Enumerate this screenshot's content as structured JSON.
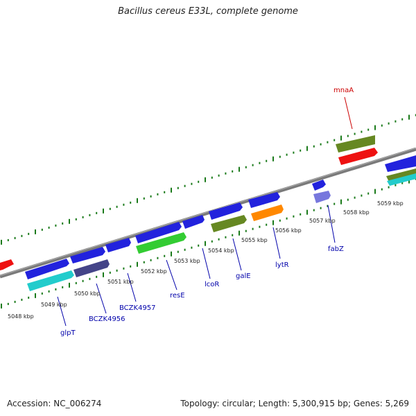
{
  "title": "Bacillus cereus E33L, complete genome",
  "footer": {
    "accession": "Accession: NC_006274",
    "stats": "Topology: circular; Length: 5,300,915 bp; Genes: 5,269"
  },
  "colors": {
    "backbone": "#888888",
    "ticks": "#1a7a1a",
    "gene_label": "#0000aa",
    "highlight_label": "#cc0000",
    "blue": "#2222dd",
    "cyan": "#22cccc",
    "navy": "#444488",
    "green": "#33cc33",
    "olive": "#668822",
    "orange": "#ff8800",
    "red": "#ee1111",
    "lavender": "#7777dd"
  },
  "scale_labels": [
    "5048 kbp",
    "5049 kbp",
    "5050 kbp",
    "5051 kbp",
    "5052 kbp",
    "5053 kbp",
    "5054 kbp",
    "5055 kbp",
    "5056 kbp",
    "5057 kbp",
    "5058 kbp",
    "5059 kbp"
  ],
  "gene_labels": [
    "glpT",
    "BCZK4956",
    "BCZK4957",
    "resE",
    "lcoR",
    "galE",
    "lytR",
    "fabZ",
    "mnaA"
  ]
}
